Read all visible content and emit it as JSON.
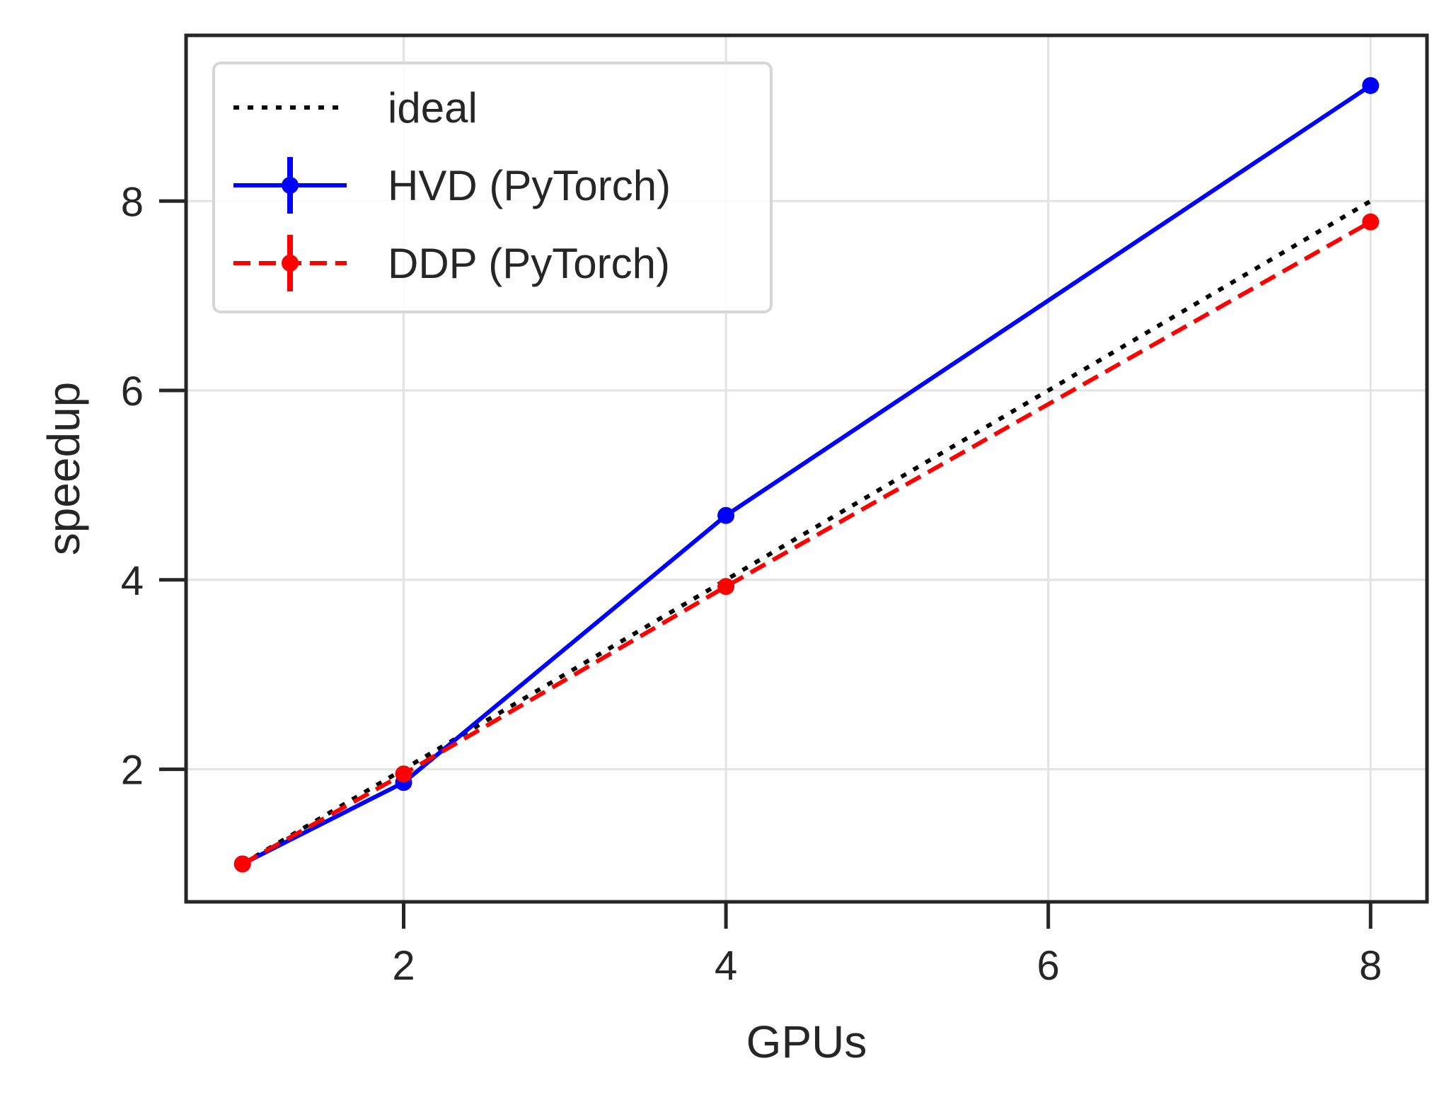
{
  "chart_data": {
    "type": "line",
    "title": "",
    "xlabel": "GPUs",
    "ylabel": "speedup",
    "xlim": [
      0.65,
      8.35
    ],
    "ylim": [
      0.6,
      9.75
    ],
    "xticks": [
      2,
      4,
      6,
      8
    ],
    "yticks": [
      2,
      4,
      6,
      8
    ],
    "xtick_labels": [
      "2",
      "4",
      "6",
      "8"
    ],
    "ytick_labels": [
      "2",
      "4",
      "6",
      "8"
    ],
    "grid": true,
    "legend_position": "top-left",
    "x": [
      1,
      2,
      4,
      8
    ],
    "series": [
      {
        "name": "ideal",
        "values": [
          1,
          2,
          4,
          8
        ],
        "color": "#000000",
        "style": "dotted",
        "marker": "none",
        "error_bars": false
      },
      {
        "name": "HVD (PyTorch)",
        "values": [
          1.0,
          1.86,
          4.68,
          9.22
        ],
        "errors": [
          0.02,
          0.03,
          0.04,
          0.08
        ],
        "color": "#0000ff",
        "style": "solid",
        "marker": "dot",
        "error_bars": true
      },
      {
        "name": "DDP (PyTorch)",
        "values": [
          1.0,
          1.95,
          3.93,
          7.78
        ],
        "errors": [
          0.02,
          0.03,
          0.03,
          0.07
        ],
        "color": "#ff0000",
        "style": "dashed",
        "marker": "dot",
        "error_bars": true
      }
    ]
  }
}
